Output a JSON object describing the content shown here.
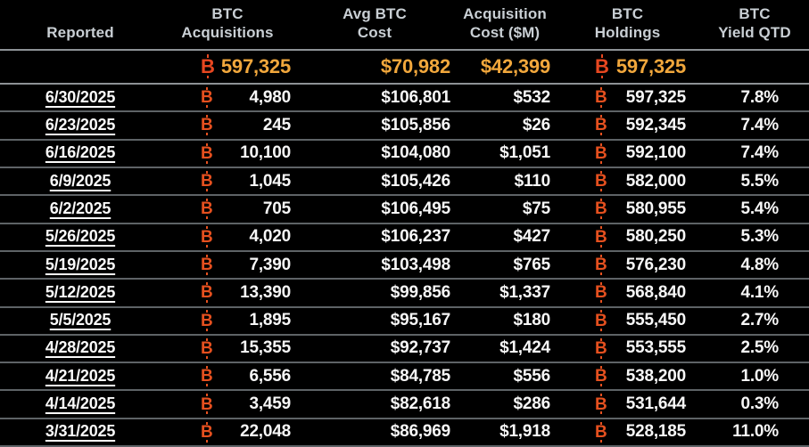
{
  "colors": {
    "background": "#000000",
    "header_text": "#c9cfd4",
    "row_text": "#f7f7f7",
    "btc_symbol_orange": "#e5501f",
    "summary_gold": "#f1a73c",
    "divider_strong": "#8d9296",
    "divider_row": "#5e6366"
  },
  "table": {
    "btc_symbol": "₿",
    "btc_symbol_base": "B",
    "columns": [
      {
        "id": "reported",
        "lines": [
          "Reported"
        ]
      },
      {
        "id": "btc-acquisitions",
        "lines": [
          "BTC",
          "Acquisitions"
        ]
      },
      {
        "id": "avg-btc-cost",
        "lines": [
          "Avg BTC",
          "Cost"
        ]
      },
      {
        "id": "acquisition-cost",
        "lines": [
          "Acquisition",
          "Cost ($M)"
        ]
      },
      {
        "id": "btc-holdings",
        "lines": [
          "BTC",
          "Holdings"
        ]
      },
      {
        "id": "btc-yield-qtd",
        "lines": [
          "BTC",
          "Yield QTD"
        ]
      }
    ],
    "summary": {
      "btc_acquisitions": "597,325",
      "avg_btc_cost": "$70,982",
      "acquisition_cost": "$42,399",
      "btc_holdings": "597,325",
      "btc_yield_qtd": ""
    },
    "rows": [
      {
        "reported": "6/30/2025",
        "btc_acquisitions": "4,980",
        "avg_btc_cost": "$106,801",
        "acquisition_cost": "$532",
        "btc_holdings": "597,325",
        "btc_yield_qtd": "7.8%"
      },
      {
        "reported": "6/23/2025",
        "btc_acquisitions": "245",
        "avg_btc_cost": "$105,856",
        "acquisition_cost": "$26",
        "btc_holdings": "592,345",
        "btc_yield_qtd": "7.4%"
      },
      {
        "reported": "6/16/2025",
        "btc_acquisitions": "10,100",
        "avg_btc_cost": "$104,080",
        "acquisition_cost": "$1,051",
        "btc_holdings": "592,100",
        "btc_yield_qtd": "7.4%"
      },
      {
        "reported": "6/9/2025",
        "btc_acquisitions": "1,045",
        "avg_btc_cost": "$105,426",
        "acquisition_cost": "$110",
        "btc_holdings": "582,000",
        "btc_yield_qtd": "5.5%"
      },
      {
        "reported": "6/2/2025",
        "btc_acquisitions": "705",
        "avg_btc_cost": "$106,495",
        "acquisition_cost": "$75",
        "btc_holdings": "580,955",
        "btc_yield_qtd": "5.4%"
      },
      {
        "reported": "5/26/2025",
        "btc_acquisitions": "4,020",
        "avg_btc_cost": "$106,237",
        "acquisition_cost": "$427",
        "btc_holdings": "580,250",
        "btc_yield_qtd": "5.3%"
      },
      {
        "reported": "5/19/2025",
        "btc_acquisitions": "7,390",
        "avg_btc_cost": "$103,498",
        "acquisition_cost": "$765",
        "btc_holdings": "576,230",
        "btc_yield_qtd": "4.8%"
      },
      {
        "reported": "5/12/2025",
        "btc_acquisitions": "13,390",
        "avg_btc_cost": "$99,856",
        "acquisition_cost": "$1,337",
        "btc_holdings": "568,840",
        "btc_yield_qtd": "4.1%"
      },
      {
        "reported": "5/5/2025",
        "btc_acquisitions": "1,895",
        "avg_btc_cost": "$95,167",
        "acquisition_cost": "$180",
        "btc_holdings": "555,450",
        "btc_yield_qtd": "2.7%"
      },
      {
        "reported": "4/28/2025",
        "btc_acquisitions": "15,355",
        "avg_btc_cost": "$92,737",
        "acquisition_cost": "$1,424",
        "btc_holdings": "553,555",
        "btc_yield_qtd": "2.5%"
      },
      {
        "reported": "4/21/2025",
        "btc_acquisitions": "6,556",
        "avg_btc_cost": "$84,785",
        "acquisition_cost": "$556",
        "btc_holdings": "538,200",
        "btc_yield_qtd": "1.0%"
      },
      {
        "reported": "4/14/2025",
        "btc_acquisitions": "3,459",
        "avg_btc_cost": "$82,618",
        "acquisition_cost": "$286",
        "btc_holdings": "531,644",
        "btc_yield_qtd": "0.3%"
      },
      {
        "reported": "3/31/2025",
        "btc_acquisitions": "22,048",
        "avg_btc_cost": "$86,969",
        "acquisition_cost": "$1,918",
        "btc_holdings": "528,185",
        "btc_yield_qtd": "11.0%"
      }
    ]
  }
}
